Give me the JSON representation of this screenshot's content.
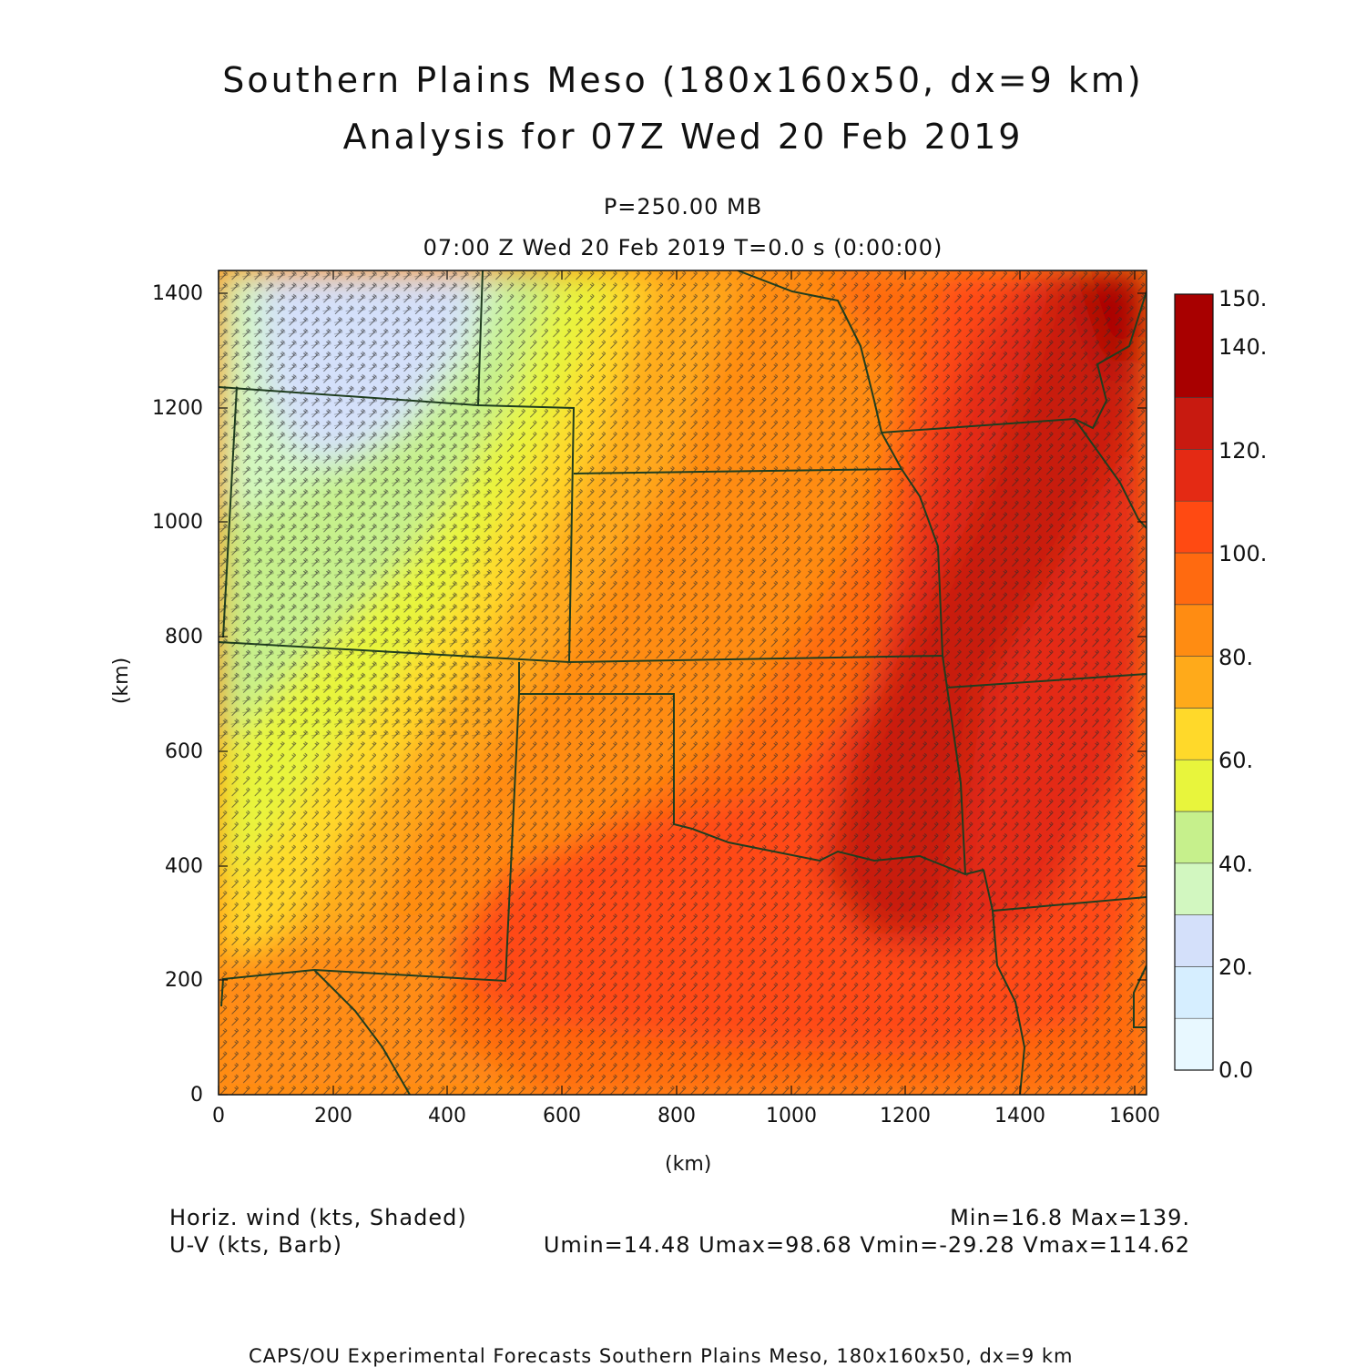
{
  "title": {
    "line1": "Southern Plains Meso (180x160x50, dx=9 km)",
    "line2": "Analysis for 07Z Wed 20 Feb 2019"
  },
  "subtitle": {
    "pressure": "P=250.00 MB",
    "time": "07:00 Z Wed 20 Feb 2019    T=0.0 s (0:00:00)"
  },
  "axes": {
    "xlabel": "(km)",
    "ylabel": "(km)",
    "xticks": [
      "0",
      "200",
      "400",
      "600",
      "800",
      "1000",
      "1200",
      "1400",
      "1600"
    ],
    "yticks": [
      "0",
      "200",
      "400",
      "600",
      "800",
      "1000",
      "1200",
      "1400"
    ],
    "xrange": [
      0,
      1620
    ],
    "yrange": [
      0,
      1440
    ]
  },
  "colorbar": {
    "labels": [
      "0.0",
      "20.",
      "40.",
      "60.",
      "80.",
      "100.",
      "120.",
      "140.",
      "150."
    ],
    "colors": [
      "#e8f8ff",
      "#d6eeff",
      "#d4e0fa",
      "#d2f7c0",
      "#c6f08c",
      "#e8f53c",
      "#ffd92a",
      "#ffaa1a",
      "#ff8c12",
      "#ff6a10",
      "#ff4a12",
      "#e42a14",
      "#c81a10",
      "#a80000"
    ]
  },
  "footer": {
    "field1": "Horiz. wind (kts, Shaded)",
    "field2": "U-V (kts, Barb)",
    "minmax": "Min=16.8 Max=139.",
    "uvstats": "Umin=14.48 Umax=98.68 Vmin=-29.28 Vmax=114.62",
    "credit": "CAPS/OU Experimental Forecasts  Southern Plains Meso, 180x160x50, dx=9 km"
  },
  "chart_data": {
    "type": "heatmap",
    "field": "Horizontal wind speed at 250 mb (kts)",
    "units": "kts",
    "min": 16.8,
    "max": 139,
    "u_min": 14.48,
    "u_max": 98.68,
    "v_min": -29.28,
    "v_max": 114.62,
    "x_range_km": [
      0,
      1620
    ],
    "y_range_km": [
      0,
      1440
    ],
    "contour_levels": [
      0,
      10,
      20,
      30,
      40,
      50,
      60,
      70,
      80,
      90,
      100,
      110,
      120,
      130,
      140,
      150
    ],
    "grid": false
  }
}
